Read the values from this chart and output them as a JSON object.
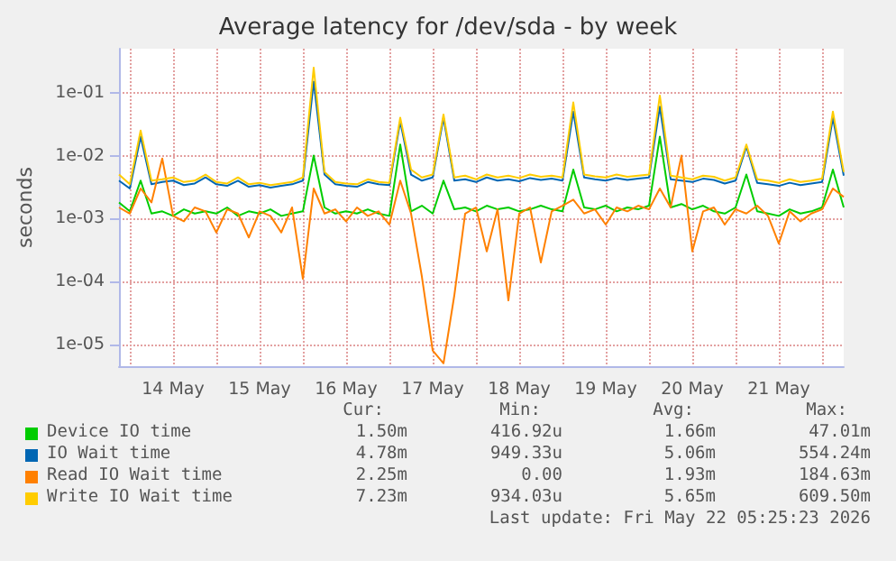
{
  "chart_data": {
    "type": "line",
    "title": "Average latency for /dev/sda - by week",
    "ylabel": "seconds",
    "log": "y",
    "grid": true,
    "legend": "bottom",
    "marker": "none",
    "line_style": "solid",
    "ylim": [
      4.5e-06,
      0.5
    ],
    "yticks": [
      {
        "value": 1e-05,
        "label": "1e-05"
      },
      {
        "value": 0.0001,
        "label": "1e-04"
      },
      {
        "value": 0.001,
        "label": "1e-03"
      },
      {
        "value": 0.01,
        "label": "1e-02"
      },
      {
        "value": 0.1,
        "label": "1e-01"
      }
    ],
    "xlim": [
      "2026-05-13T21:00",
      "2026-05-22T06:00"
    ],
    "xticks": [
      {
        "value": "2026-05-14T00:00",
        "label": null
      },
      {
        "value": "2026-05-14T12:00",
        "label": "14 May"
      },
      {
        "value": "2026-05-15T00:00",
        "label": null
      },
      {
        "value": "2026-05-15T12:00",
        "label": "15 May"
      },
      {
        "value": "2026-05-16T00:00",
        "label": null
      },
      {
        "value": "2026-05-16T12:00",
        "label": "16 May"
      },
      {
        "value": "2026-05-17T00:00",
        "label": null
      },
      {
        "value": "2026-05-17T12:00",
        "label": "17 May"
      },
      {
        "value": "2026-05-18T00:00",
        "label": null
      },
      {
        "value": "2026-05-18T12:00",
        "label": "18 May"
      },
      {
        "value": "2026-05-19T00:00",
        "label": null
      },
      {
        "value": "2026-05-19T12:00",
        "label": "19 May"
      },
      {
        "value": "2026-05-20T00:00",
        "label": null
      },
      {
        "value": "2026-05-20T12:00",
        "label": "20 May"
      },
      {
        "value": "2026-05-21T00:00",
        "label": null
      },
      {
        "value": "2026-05-21T12:00",
        "label": "21 May"
      },
      {
        "value": "2026-05-22T00:00",
        "label": null
      }
    ],
    "x": [
      "2026-05-13T21:00",
      "2026-05-14T00:00",
      "2026-05-14T03:00",
      "2026-05-14T06:00",
      "2026-05-14T09:00",
      "2026-05-14T12:00",
      "2026-05-14T15:00",
      "2026-05-14T18:00",
      "2026-05-14T21:00",
      "2026-05-15T00:00",
      "2026-05-15T03:00",
      "2026-05-15T06:00",
      "2026-05-15T09:00",
      "2026-05-15T12:00",
      "2026-05-15T15:00",
      "2026-05-15T18:00",
      "2026-05-15T21:00",
      "2026-05-16T00:00",
      "2026-05-16T03:00",
      "2026-05-16T06:00",
      "2026-05-16T09:00",
      "2026-05-16T12:00",
      "2026-05-16T15:00",
      "2026-05-16T18:00",
      "2026-05-16T21:00",
      "2026-05-17T00:00",
      "2026-05-17T03:00",
      "2026-05-17T06:00",
      "2026-05-17T09:00",
      "2026-05-17T12:00",
      "2026-05-17T15:00",
      "2026-05-17T18:00",
      "2026-05-17T21:00",
      "2026-05-18T00:00",
      "2026-05-18T03:00",
      "2026-05-18T06:00",
      "2026-05-18T09:00",
      "2026-05-18T12:00",
      "2026-05-18T15:00",
      "2026-05-18T18:00",
      "2026-05-18T21:00",
      "2026-05-19T00:00",
      "2026-05-19T03:00",
      "2026-05-19T06:00",
      "2026-05-19T09:00",
      "2026-05-19T12:00",
      "2026-05-19T15:00",
      "2026-05-19T18:00",
      "2026-05-19T21:00",
      "2026-05-20T00:00",
      "2026-05-20T03:00",
      "2026-05-20T06:00",
      "2026-05-20T09:00",
      "2026-05-20T12:00",
      "2026-05-20T15:00",
      "2026-05-20T18:00",
      "2026-05-20T21:00",
      "2026-05-21T00:00",
      "2026-05-21T03:00",
      "2026-05-21T06:00",
      "2026-05-21T09:00",
      "2026-05-21T12:00",
      "2026-05-21T15:00",
      "2026-05-21T18:00",
      "2026-05-21T21:00",
      "2026-05-22T00:00",
      "2026-05-22T03:00",
      "2026-05-22T06:00"
    ],
    "series": [
      {
        "name": "Device IO time",
        "color": "#00cc00",
        "values": [
          0.0018,
          0.0013,
          0.004,
          0.0012,
          0.0013,
          0.0011,
          0.0014,
          0.0012,
          0.0013,
          0.0012,
          0.0015,
          0.0011,
          0.0013,
          0.0012,
          0.0014,
          0.0011,
          0.0012,
          0.0013,
          0.01,
          0.0015,
          0.0012,
          0.0013,
          0.0012,
          0.0014,
          0.0012,
          0.0011,
          0.015,
          0.0013,
          0.0016,
          0.0012,
          0.004,
          0.0014,
          0.0015,
          0.0013,
          0.0016,
          0.0014,
          0.0015,
          0.0013,
          0.0014,
          0.0016,
          0.0014,
          0.0013,
          0.006,
          0.0015,
          0.0014,
          0.0016,
          0.0013,
          0.0015,
          0.0014,
          0.0016,
          0.02,
          0.0015,
          0.0017,
          0.0014,
          0.0016,
          0.0013,
          0.0012,
          0.0015,
          0.005,
          0.0013,
          0.0012,
          0.0011,
          0.0014,
          0.0012,
          0.0013,
          0.0015,
          0.006,
          0.0015
        ]
      },
      {
        "name": "IO Wait time",
        "color": "#0066b3",
        "values": [
          0.004,
          0.003,
          0.02,
          0.0035,
          0.0038,
          0.004,
          0.0034,
          0.0036,
          0.0045,
          0.0035,
          0.0033,
          0.004,
          0.0032,
          0.0034,
          0.0031,
          0.0033,
          0.0035,
          0.004,
          0.15,
          0.005,
          0.0035,
          0.0033,
          0.0032,
          0.0038,
          0.0035,
          0.0034,
          0.035,
          0.005,
          0.004,
          0.0045,
          0.04,
          0.004,
          0.0042,
          0.0038,
          0.0045,
          0.004,
          0.0042,
          0.0039,
          0.0044,
          0.0041,
          0.0043,
          0.004,
          0.05,
          0.0045,
          0.0042,
          0.004,
          0.0044,
          0.0041,
          0.0043,
          0.0045,
          0.06,
          0.0042,
          0.004,
          0.0038,
          0.0043,
          0.0041,
          0.0036,
          0.004,
          0.014,
          0.0037,
          0.0035,
          0.0033,
          0.0037,
          0.0034,
          0.0036,
          0.0038,
          0.04,
          0.0048
        ]
      },
      {
        "name": "Read IO Wait time",
        "color": "#ff8000",
        "values": [
          0.0015,
          0.0012,
          0.003,
          0.0018,
          0.009,
          0.0011,
          0.0009,
          0.0015,
          0.0013,
          0.0006,
          0.0014,
          0.0012,
          0.0005,
          0.0013,
          0.0011,
          0.0006,
          0.0015,
          0.00011,
          0.003,
          0.0012,
          0.0014,
          0.0009,
          0.0015,
          0.0011,
          0.0013,
          0.0008,
          0.004,
          0.0012,
          0.00012,
          8e-06,
          5e-06,
          6e-05,
          0.0012,
          0.0015,
          0.0003,
          0.0014,
          5e-05,
          0.0012,
          0.0015,
          0.0002,
          0.0013,
          0.0016,
          0.002,
          0.0012,
          0.0014,
          0.0008,
          0.0015,
          0.0013,
          0.0016,
          0.0014,
          0.003,
          0.0015,
          0.01,
          0.0003,
          0.0013,
          0.0015,
          0.0008,
          0.0014,
          0.0012,
          0.0016,
          0.0011,
          0.0004,
          0.0013,
          0.0009,
          0.0012,
          0.0014,
          0.003,
          0.0022
        ]
      },
      {
        "name": "Write IO Wait time",
        "color": "#ffcc00",
        "values": [
          0.005,
          0.0035,
          0.025,
          0.004,
          0.0042,
          0.0045,
          0.0038,
          0.004,
          0.005,
          0.0038,
          0.0036,
          0.0045,
          0.0035,
          0.0037,
          0.0034,
          0.0036,
          0.0038,
          0.0045,
          0.25,
          0.0055,
          0.0038,
          0.0036,
          0.0035,
          0.0042,
          0.0038,
          0.0037,
          0.04,
          0.006,
          0.0045,
          0.005,
          0.045,
          0.0045,
          0.0048,
          0.0042,
          0.005,
          0.0045,
          0.0048,
          0.0044,
          0.005,
          0.0046,
          0.0048,
          0.0045,
          0.07,
          0.005,
          0.0047,
          0.0045,
          0.005,
          0.0046,
          0.0048,
          0.005,
          0.09,
          0.0048,
          0.0045,
          0.0042,
          0.0048,
          0.0046,
          0.004,
          0.0045,
          0.015,
          0.0042,
          0.004,
          0.0037,
          0.0042,
          0.0038,
          0.004,
          0.0043,
          0.05,
          0.0055
        ]
      }
    ],
    "annotations": [
      "Cur:",
      "Min:",
      "Avg:",
      "Max:",
      "1.50m",
      "416.92u",
      "1.66m",
      "47.01m",
      "4.78m",
      "949.33u",
      "5.06m",
      "554.24m",
      "2.25m",
      "0.00",
      "1.93m",
      "184.63m",
      "7.23m",
      "934.03u",
      "5.65m",
      "609.50m",
      "Last update: Fri May 22 05:25:23 2026"
    ]
  }
}
